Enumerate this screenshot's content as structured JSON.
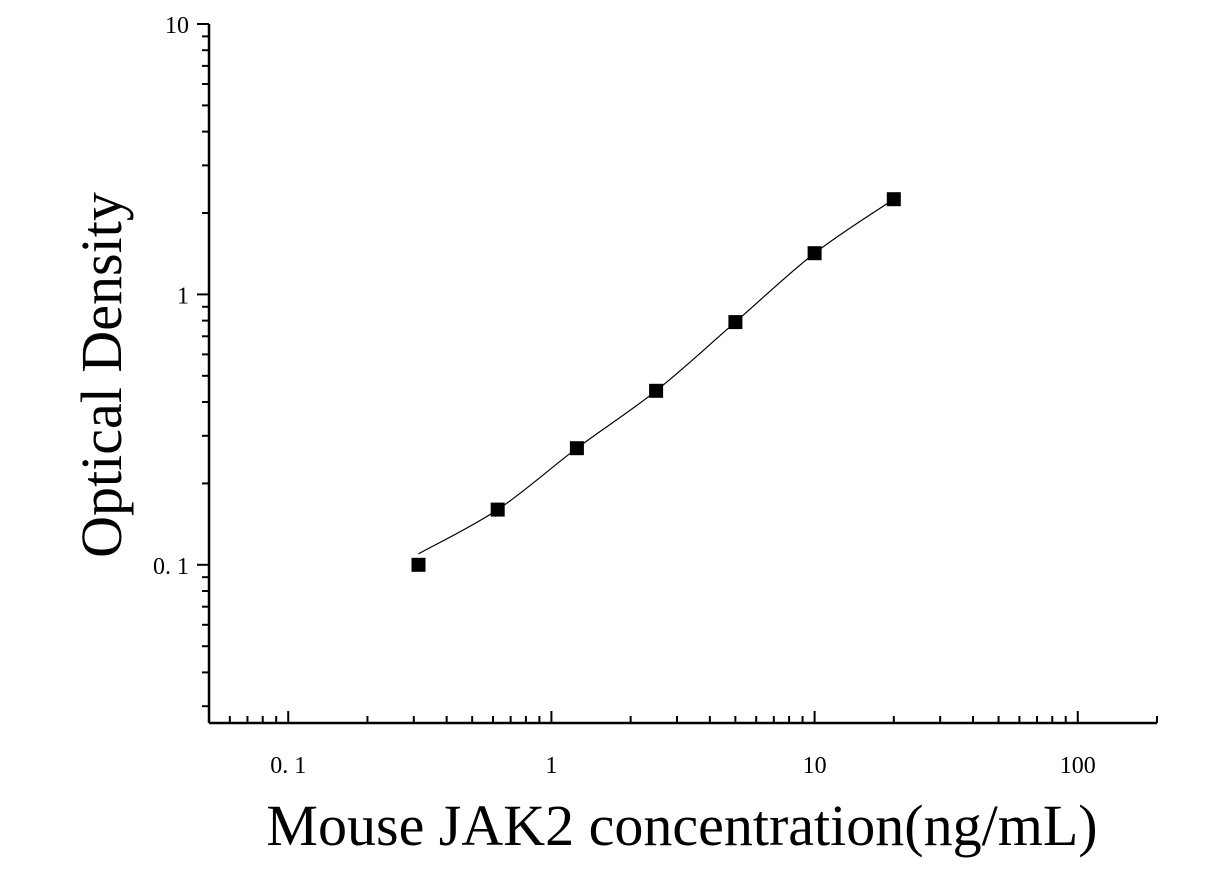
{
  "chart_data": {
    "type": "scatter",
    "title": "",
    "xlabel": "Mouse JAK2 concentration(ng/mL)",
    "ylabel": "Optical Density",
    "x_scale": "log",
    "y_scale": "log",
    "xlim": [
      0.05,
      200
    ],
    "ylim": [
      0.026,
      10
    ],
    "x_ticks": [
      {
        "value": 0.1,
        "label": "0. 1"
      },
      {
        "value": 1,
        "label": "1"
      },
      {
        "value": 10,
        "label": "10"
      },
      {
        "value": 100,
        "label": "100"
      }
    ],
    "y_ticks": [
      {
        "value": 0.1,
        "label": "0. 1"
      },
      {
        "value": 1,
        "label": "1"
      },
      {
        "value": 10,
        "label": "10"
      }
    ],
    "grid": false,
    "legend": "none",
    "marker": "square",
    "color": "#000000",
    "series": [
      {
        "points": [
          {
            "x": 0.3125,
            "y": 0.1
          },
          {
            "x": 0.625,
            "y": 0.16
          },
          {
            "x": 1.25,
            "y": 0.27
          },
          {
            "x": 2.5,
            "y": 0.44
          },
          {
            "x": 5,
            "y": 0.79
          },
          {
            "x": 10,
            "y": 1.42
          },
          {
            "x": 20,
            "y": 2.25
          }
        ]
      }
    ]
  }
}
